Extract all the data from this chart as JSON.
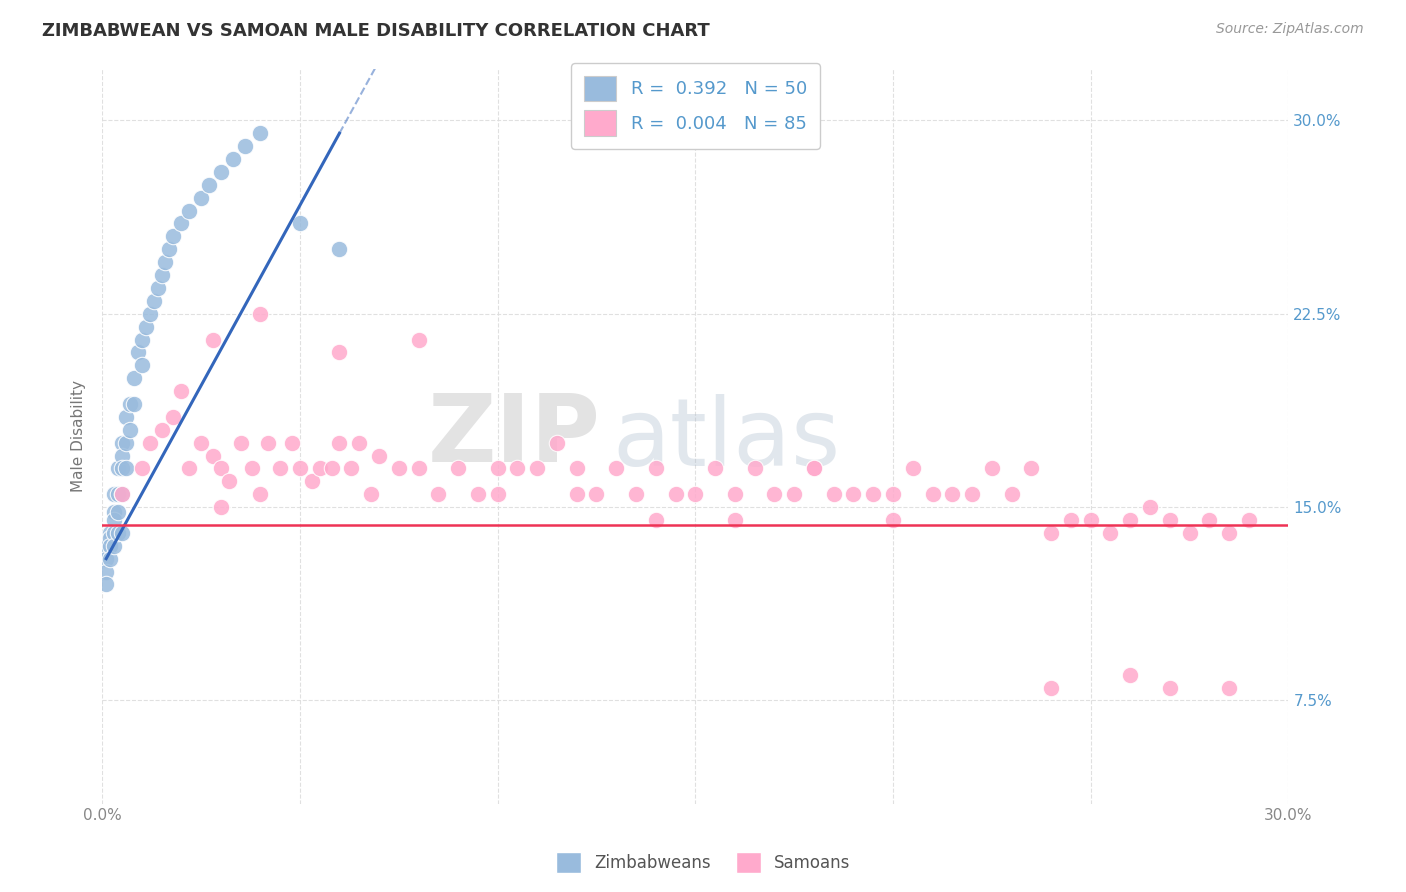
{
  "title": "ZIMBABWEAN VS SAMOAN MALE DISABILITY CORRELATION CHART",
  "source": "Source: ZipAtlas.com",
  "ylabel": "Male Disability",
  "yticks": [
    0.075,
    0.15,
    0.225,
    0.3
  ],
  "ytick_labels": [
    "7.5%",
    "15.0%",
    "22.5%",
    "30.0%"
  ],
  "xlim": [
    0.0,
    0.3
  ],
  "ylim": [
    0.035,
    0.32
  ],
  "zimbabwean_R": 0.392,
  "zimbabwean_N": 50,
  "samoan_R": 0.004,
  "samoan_N": 85,
  "blue_color": "#99BBDD",
  "pink_color": "#FFAACC",
  "blue_line_color": "#3366BB",
  "pink_line_color": "#EE3355",
  "legend_zimbabweans": "Zimbabweans",
  "legend_samoans": "Samoans",
  "watermark_zip": "ZIP",
  "watermark_atlas": "atlas",
  "background_color": "#FFFFFF",
  "grid_color": "#DDDDDD",
  "title_color": "#333333",
  "axis_label_color": "#5599CC",
  "tick_label_color": "#888888",
  "zim_x": [
    0.001,
    0.001,
    0.001,
    0.001,
    0.002,
    0.002,
    0.002,
    0.002,
    0.003,
    0.003,
    0.003,
    0.003,
    0.003,
    0.004,
    0.004,
    0.004,
    0.004,
    0.005,
    0.005,
    0.005,
    0.005,
    0.005,
    0.006,
    0.006,
    0.006,
    0.007,
    0.007,
    0.008,
    0.008,
    0.009,
    0.01,
    0.01,
    0.011,
    0.012,
    0.013,
    0.014,
    0.015,
    0.016,
    0.017,
    0.018,
    0.02,
    0.022,
    0.025,
    0.027,
    0.03,
    0.033,
    0.036,
    0.04,
    0.05,
    0.06
  ],
  "zim_y": [
    0.135,
    0.13,
    0.125,
    0.12,
    0.14,
    0.138,
    0.135,
    0.13,
    0.155,
    0.148,
    0.145,
    0.14,
    0.135,
    0.165,
    0.155,
    0.148,
    0.14,
    0.175,
    0.17,
    0.165,
    0.155,
    0.14,
    0.185,
    0.175,
    0.165,
    0.19,
    0.18,
    0.2,
    0.19,
    0.21,
    0.215,
    0.205,
    0.22,
    0.225,
    0.23,
    0.235,
    0.24,
    0.245,
    0.25,
    0.255,
    0.26,
    0.265,
    0.27,
    0.275,
    0.28,
    0.285,
    0.29,
    0.295,
    0.26,
    0.25
  ],
  "sam_x": [
    0.005,
    0.01,
    0.012,
    0.015,
    0.018,
    0.02,
    0.022,
    0.025,
    0.028,
    0.03,
    0.032,
    0.035,
    0.038,
    0.04,
    0.042,
    0.045,
    0.048,
    0.05,
    0.053,
    0.055,
    0.058,
    0.06,
    0.063,
    0.065,
    0.068,
    0.07,
    0.075,
    0.08,
    0.085,
    0.09,
    0.095,
    0.1,
    0.105,
    0.11,
    0.115,
    0.12,
    0.125,
    0.13,
    0.135,
    0.14,
    0.145,
    0.15,
    0.155,
    0.16,
    0.165,
    0.17,
    0.175,
    0.18,
    0.185,
    0.19,
    0.195,
    0.2,
    0.205,
    0.21,
    0.215,
    0.22,
    0.225,
    0.23,
    0.235,
    0.24,
    0.245,
    0.25,
    0.255,
    0.26,
    0.265,
    0.27,
    0.275,
    0.28,
    0.285,
    0.028,
    0.04,
    0.06,
    0.08,
    0.1,
    0.12,
    0.14,
    0.16,
    0.18,
    0.2,
    0.24,
    0.26,
    0.27,
    0.285,
    0.03,
    0.29
  ],
  "sam_y": [
    0.155,
    0.165,
    0.175,
    0.18,
    0.185,
    0.195,
    0.165,
    0.175,
    0.17,
    0.165,
    0.16,
    0.175,
    0.165,
    0.155,
    0.175,
    0.165,
    0.175,
    0.165,
    0.16,
    0.165,
    0.165,
    0.175,
    0.165,
    0.175,
    0.155,
    0.17,
    0.165,
    0.165,
    0.155,
    0.165,
    0.155,
    0.155,
    0.165,
    0.165,
    0.175,
    0.165,
    0.155,
    0.165,
    0.155,
    0.165,
    0.155,
    0.155,
    0.165,
    0.155,
    0.165,
    0.155,
    0.155,
    0.165,
    0.155,
    0.155,
    0.155,
    0.155,
    0.165,
    0.155,
    0.155,
    0.155,
    0.165,
    0.155,
    0.165,
    0.14,
    0.145,
    0.145,
    0.14,
    0.145,
    0.15,
    0.145,
    0.14,
    0.145,
    0.14,
    0.215,
    0.225,
    0.21,
    0.215,
    0.165,
    0.155,
    0.145,
    0.145,
    0.165,
    0.145,
    0.08,
    0.085,
    0.08,
    0.08,
    0.15,
    0.145
  ]
}
